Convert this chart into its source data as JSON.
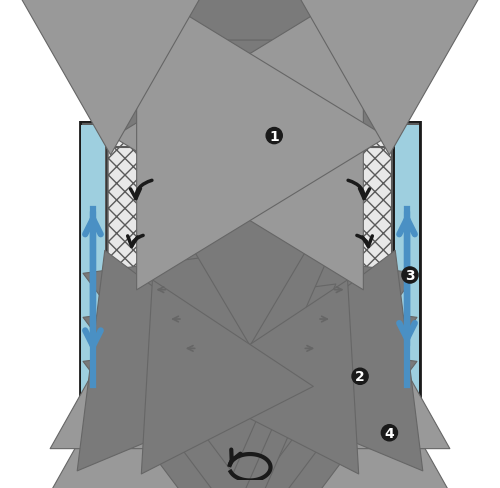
{
  "bg": "#ffffff",
  "light_blue": "#9ecfdf",
  "blue_arrow": "#4a90c4",
  "dark_gray": "#5a5a5a",
  "mid_gray": "#aaaaaa",
  "light_gray": "#d0d0d0",
  "hatch_face": "#e8e8e8",
  "arrow_gray": "#999999",
  "arrow_dark_gray": "#666666",
  "arrow_gravel": "#7a7a7a",
  "black": "#1a1a1a",
  "funnel_bg": "#eeeeee",
  "shaft_gray": "#b0b0b0"
}
